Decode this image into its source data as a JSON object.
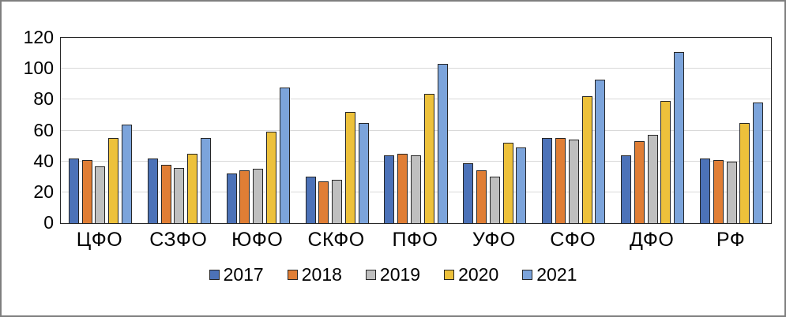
{
  "chart_data": {
    "type": "bar",
    "title": "",
    "xlabel": "",
    "ylabel": "",
    "ylim": [
      0,
      120
    ],
    "yticks": [
      0,
      20,
      40,
      60,
      80,
      100,
      120
    ],
    "grid": "horizontal",
    "legend_position": "bottom",
    "categories": [
      "ЦФО",
      "СЗФО",
      "ЮФО",
      "СКФО",
      "ПФО",
      "УФО",
      "СФО",
      "ДФО",
      "РФ"
    ],
    "series": [
      {
        "name": "2017",
        "color": "#4c72b8",
        "border": "#262626",
        "values": [
          42,
          42,
          32,
          30,
          44,
          39,
          55,
          44,
          42
        ]
      },
      {
        "name": "2018",
        "color": "#e07e35",
        "border": "#262626",
        "values": [
          41,
          38,
          34,
          27,
          45,
          34,
          55,
          53,
          41
        ]
      },
      {
        "name": "2019",
        "color": "#bfbfbf",
        "border": "#262626",
        "values": [
          37,
          36,
          35,
          28,
          44,
          30,
          54,
          57,
          40
        ]
      },
      {
        "name": "2020",
        "color": "#edc13b",
        "border": "#262626",
        "values": [
          55,
          45,
          59,
          72,
          84,
          52,
          82,
          79,
          65
        ]
      },
      {
        "name": "2021",
        "color": "#7ca4db",
        "border": "#262626",
        "values": [
          64,
          55,
          88,
          65,
          103,
          49,
          93,
          111,
          78
        ]
      }
    ],
    "plot_border_color": "#262626",
    "gridline_color": "#d9d9d9",
    "outer_border_color": "#7f7f7f"
  }
}
